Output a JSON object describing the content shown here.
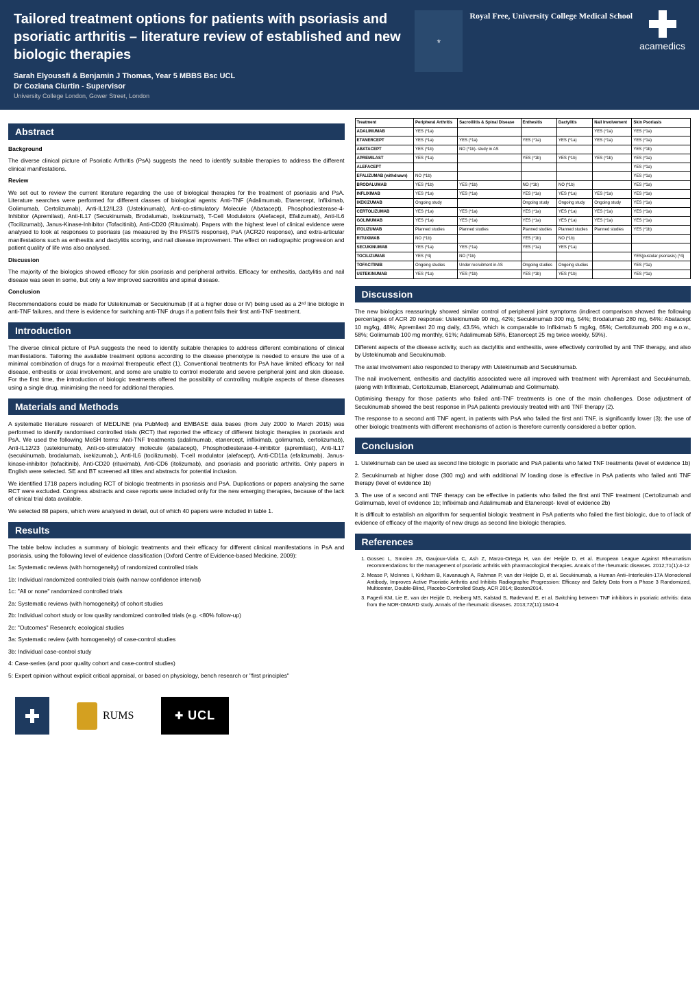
{
  "header": {
    "title": "Tailored treatment options for patients with psoriasis and psoriatic arthritis – literature review of established and new biologic therapies",
    "authors": "Sarah Elyoussfi & Benjamin J Thomas, Year 5 MBBS Bsc UCL",
    "supervisor": "Dr Coziana Ciurtin - Supervisor",
    "affiliation": "University College London, Gower Street, London",
    "logo2_text": "Royal Free, University College Medical School",
    "logo3_text": "acamedics"
  },
  "sections": {
    "abstract_title": "Abstract",
    "abstract_bg": "Background",
    "abstract_bg_text": "The diverse clinical picture of Psoriatic Arthritis (PsA) suggests the need to identify suitable therapies to address the different clinical manifestations.",
    "abstract_rev": "Review",
    "abstract_rev_text": "We set out to review the current literature regarding the use of biological therapies for the treatment of psoriasis and PsA. Literature searches were performed for different classes of biological agents: Anti-TNF (Adalimumab, Etanercept, Infliximab, Golimumab, Certolizumab), Anti-IL12/IL23 (Ustekinumab), Anti-co-stimulatory Molecule (Abatacept), Phosphodiesterase-4-Inhibitor (Apremilast), Anti-IL17 (Secukinumab, Brodalumab, Ixekizumab), T-Cell Modulators (Alefacept, Efalizumab), Anti-IL6 (Tocilizumab), Janus-Kinase-Inhibitor (Tofacitinib), Anti-CD20 (Rituximab). Papers with the highest level of clinical evidence were analysed to look at responses to psoriasis (as measured by the PASI75 response), PsA (ACR20 response), and extra-articular manifestations such as enthesitis and dactylitis scoring, and nail disease improvement. The effect on radiographic progression and patient quality of life was also analysed.",
    "abstract_disc": "Discussion",
    "abstract_disc_text": "The majority of the biologics showed efficacy for skin psoriasis and peripheral arthritis. Efficacy for enthesitis, dactylitis and nail disease was seen in some, but only a few improved sacroiliitis and spinal disease.",
    "abstract_conc": "Conclusion",
    "abstract_conc_text": "Recommendations could be made for Ustekinumab or Secukinumab (if at a higher dose or IV) being used as a 2ⁿᵈ line biologic in anti-TNF failures, and there is evidence for switching anti-TNF drugs if a patient fails their first anti-TNF treatment.",
    "intro_title": "Introduction",
    "intro_text": "The diverse clinical picture of PsA suggests the need to identify suitable therapies to address different combinations of clinical manifestations. Tailoring the available treatment options according to the disease phenotype is needed to ensure the use of a minimal combination of drugs for a maximal therapeutic effect (1). Conventional treatments for PsA have limited efficacy for nail disease, enthesitis or axial involvement, and some are unable to control moderate and severe peripheral joint and skin disease. For the first time, the introduction of biologic treatments offered the possibility of controlling multiple aspects of these diseases using a single drug, minimising the need for additional therapies.",
    "methods_title": "Materials and Methods",
    "methods_p1": "A systematic literature research of MEDLINE (via PubMed) and EMBASE data bases (from July 2000 to March 2015) was performed to identify randomised controlled trials (RCT) that reported the efficacy of different biologic therapies in psoriasis and PsA. We used the following MeSH terms: Anti-TNF treatments (adalimumab, etanercept, infliximab, golimumab, certolizumab), Anti-IL12/23 (ustekinumab), Anti-co-stimulatory molecule (abatacept), Phosphodiesterase-4-inhibitor (apremilast), Anti-IL17 (secukinumab, brodalumab, ixekizumab,), Anti-IL6 (tocilizumab), T-cell modulator (alefacept), Anti-CD11a (efalizumab), Janus-kinase-inhibitor (tofacitinib), Anti-CD20 (rituximab), Anti-CD6 (itolizumab), and psoriasis and psoriatic arthritis. Only papers in English were selected. SE and BT screened all titles and abstracts for potential inclusion.",
    "methods_p2": "We identified 1718 papers including RCT of biologic treatments in psoriasis and PsA. Duplications or papers analysing the same RCT were excluded. Congress abstracts and case reports were included only for the new emerging therapies, because of the lack of clinical trial data available.",
    "methods_p3": "We selected 88 papers, which were analysed in detail, out of which 40 papers were included in table 1.",
    "results_title": "Results",
    "results_p1": "The table below includes a summary of biologic treatments and their efficacy for different clinical manifestations in PsA and psoriasis, using the following level of evidence classification (Oxford Centre of Evidence-based Medicine, 2009):",
    "ev_1a": "1a: Systematic reviews (with homogeneity) of randomized controlled trials",
    "ev_1b": "1b: Individual randomized controlled trials (with narrow confidence interval)",
    "ev_1c": "1c: \"All or none\" randomized controlled trials",
    "ev_2a": "2a: Systematic reviews (with homogeneity) of cohort studies",
    "ev_2b": "2b: Individual cohort study or low quality randomized controlled trials (e.g. <80% follow-up)",
    "ev_2c": "2c: \"Outcomes\" Research; ecological studies",
    "ev_3a": "3a: Systematic review (with homogeneity) of case-control studies",
    "ev_3b": "3b: Individual case-control study",
    "ev_4": "4: Case-series (and poor quality cohort and case-control studies)",
    "ev_5": "5: Expert opinion without explicit critical appraisal, or based on physiology, bench research or \"first principles\"",
    "discussion_title": "Discussion",
    "disc_p1": "The new biologics reassuringly showed similar control of peripheral joint symptoms (indirect comparison showed the following percentages of ACR 20 response: Ustekinumab 90 mg, 42%; Secukinumab 300 mg, 54%; Brodalumab 280 mg, 64%: Abatacept 10 mg/kg, 48%; Apremilast 20 mg daily, 43.5%, which is comparable to Infliximab 5 mg/kg, 65%; Certolizumab 200 mg e.o.w., 58%; Golimumab 100 mg monthly, 61%; Adalimumab 58%, Etanercept 25 mg twice weekly, 59%).",
    "disc_p2": "Different aspects of the disease activity, such as dactylitis and enthesitis, were effectively controlled by anti TNF therapy, and also by Ustekinumab and Secukinumab.",
    "disc_p3": "The axial involvement also responded to therapy with Ustekinumab and Secukinumab.",
    "disc_p4": "The nail involvement, enthesitis and dactylitis associated were all improved with treatment with Apremilast and Secukinumab, (along with Infliximab, Certolizumab, Etanercept, Adalimumab and Golimumab).",
    "disc_p5": "Optimising therapy for those patients who failed anti-TNF treatments is one of the main challenges. Dose adjustment of Secukinumab showed the best response in PsA patients previously treated with anti TNF therapy (2).",
    "disc_p6": "The response to a second anti TNF agent, in patients with PsA who failed the first anti TNF, is significantly lower (3); the use of other biologic treatments with different mechanisms of action is therefore currently considered a better option.",
    "conclusion_title": "Conclusion",
    "conc_p1": "1. Ustekinumab can be used as second line biologic in psoriatic and PsA patients who failed TNF treatments (level of evidence 1b)",
    "conc_p2": "2. Secukinumab at higher dose (300 mg) and with additional IV loading dose is effective in PsA patients who failed anti TNF therapy (level of evidence 1b)",
    "conc_p3": "3. The use of a second anti TNF therapy can be effective in patients who failed the first anti TNF treatment (Certolizumab and Golimumab, level of evidence 1b; Infliximab and Adalimumab and Etanercept- level of evidence 2b)",
    "conc_p4": "It is difficult to establish an algorithm for sequential biologic treatment in PsA patients who failed the first biologic, due to of lack of evidence of efficacy of the majority of new drugs as second line biologic therapies.",
    "references_title": "References",
    "ref1": "Gossec L, Smolen JS, Gaujoux-Viala C, Ash Z, Marzo-Ortega H, van der Heijde D, et al. European League Against Rheumatism recommendations for the management of psoriatic arthritis with pharmacological therapies. Annals of the rheumatic diseases. 2012;71(1):4-12",
    "ref2": "Mease P, McInnes I, Kirkham B, Kavanaugh A, Rahman P, van der Heijde D, et al. Secukinumab, a Human Anti–Interleukin-17A Monoclonal Antibody, Improves Active Psoriatic Arthritis and Inhibits Radiographic Progression: Efficacy and Safety Data from a Phase 3 Randomized, Multicenter, Double-Blind, Placebo-Controlled Study.  ACR 2014; Boston2014.",
    "ref3": "Fagerli KM, Lie E, van der Heijde D, Heiberg MS, Kalstad S, Rødevand E, et al. Switching between TNF inhibitors in psoriatic arthritis: data from the NOR-DMARD study. Annals of the rheumatic diseases. 2013;72(11):1840-4"
  },
  "table": {
    "columns": [
      "Treatment",
      "Peripheral Arthritis",
      "Sacroiliitis & Spinal Disease",
      "Enthesitis",
      "Dactylitis",
      "Nail Involvement",
      "Skin Psoriasis"
    ],
    "rows": [
      [
        "ADALIMUMAB",
        "YES (*1a)",
        "",
        "",
        "",
        "YES (*1a)",
        "YES (*1a)"
      ],
      [
        "ETANERCEPT",
        "YES (*1a)",
        "YES (*1a)",
        "YES (*1a)",
        "YES (*1a)",
        "YES (*1a)",
        "YES (*1a)"
      ],
      [
        "ABATACEPT",
        "YES (*1b)",
        "NO (*1b)- study in AS",
        "",
        "",
        "",
        "YES (*1b)"
      ],
      [
        "APREMILAST",
        "YES (*1a)",
        "",
        "YES (*1b)",
        "YES (*1b)",
        "YES (*1b)",
        "YES (*1a)"
      ],
      [
        "ALEFACEPT",
        "",
        "",
        "",
        "",
        "",
        "YES (*1a)"
      ],
      [
        "EFALIZUMAB (withdrawn)",
        "NO (*1b)",
        "",
        "",
        "",
        "",
        "YES (*1a)"
      ],
      [
        "BRODALUMAB",
        "YES (*1b)",
        "YES (*1b)",
        "NO (*1b)",
        "NO (*1b)",
        "",
        "YES (*1a)"
      ],
      [
        "INFLIXIMAB",
        "YES (*1a)",
        "YES (*1a)",
        "YES (*1a)",
        "YES (*1a)",
        "YES (*1a)",
        "YES (*1a)"
      ],
      [
        "IXEKIZUMAB",
        "Ongoing study",
        "",
        "Ongoing study",
        "Ongoing study",
        "Ongoing study",
        "YES (*1a)"
      ],
      [
        "CERTOLIZUMAB",
        "YES (*1a)",
        "YES (*1a)",
        "YES (*1a)",
        "YES (*1a)",
        "YES (*1a)",
        "YES (*1a)"
      ],
      [
        "GOLIMUMAB",
        "YES (*1a)",
        "YES (*1a)",
        "YES (*1a)",
        "YES (*1a)",
        "YES (*1a)",
        "YES (*1a)"
      ],
      [
        "ITOLIZUMAB",
        "Planned studies",
        "Planned studies",
        "Planned studies",
        "Planned studies",
        "Planned studies",
        "YES (*1b)"
      ],
      [
        "RITUXIMAB",
        "NO (*1b)",
        "",
        "YES (*1b)",
        "NO (*1b)",
        "",
        ""
      ],
      [
        "SECUKINUMAB",
        "YES (*1a)",
        "YES (*1a)",
        "YES (*1a)",
        "YES (*1a)",
        "",
        ""
      ],
      [
        "TOCILIZUMAB",
        "YES (*4)",
        "NO (*1b)",
        "",
        "",
        "",
        "YES(pustular psoriasis) (*4)"
      ],
      [
        "TOFACITINIB",
        "Ongoing studies",
        "Under recruitment in AS",
        "Ongoing studies",
        "Ongoing studies",
        "",
        "YES (*1a)"
      ],
      [
        "USTEKINUMAB",
        "YES (*1a)",
        "YES (*1b)",
        "YES (*1b)",
        "YES (*1b)",
        "",
        "YES (*1a)"
      ]
    ]
  },
  "footer": {
    "rums": "RUMS",
    "ucl": "UCL"
  }
}
